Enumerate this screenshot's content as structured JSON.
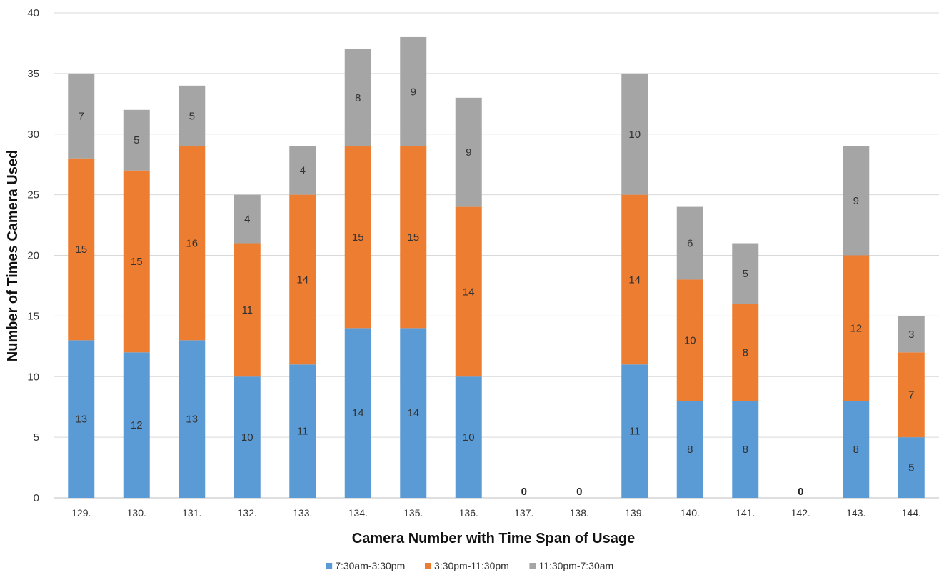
{
  "chart_data": {
    "type": "bar",
    "stacked": true,
    "title": "",
    "xlabel": "Camera Number with Time Span of Usage",
    "ylabel": "Number of Times Camera Used",
    "ylim": [
      0,
      40
    ],
    "yticks": [
      "0",
      "5",
      "10",
      "15",
      "20",
      "25",
      "30",
      "35",
      "40"
    ],
    "grid": "horizontal",
    "legend_position": "bottom",
    "categories": [
      "129.",
      "130.",
      "131.",
      "132.",
      "133.",
      "134.",
      "135.",
      "136.",
      "137.",
      "138.",
      "139.",
      "140.",
      "141.",
      "142.",
      "143.",
      "144."
    ],
    "series": [
      {
        "name": "7:30am-3:30pm",
        "color": "#5b9bd5",
        "values": [
          13,
          12,
          13,
          10,
          11,
          14,
          14,
          10,
          0,
          0,
          11,
          8,
          8,
          0,
          8,
          5
        ]
      },
      {
        "name": "3:30pm-11:30pm",
        "color": "#ed7d31",
        "values": [
          15,
          15,
          16,
          11,
          14,
          15,
          15,
          14,
          0,
          0,
          14,
          10,
          8,
          0,
          12,
          7
        ]
      },
      {
        "name": "11:30pm-7:30am",
        "color": "#a5a5a5",
        "values": [
          7,
          5,
          5,
          4,
          4,
          8,
          9,
          9,
          0,
          0,
          10,
          6,
          5,
          0,
          9,
          3
        ]
      }
    ],
    "total_labels": [
      "",
      "",
      "",
      "",
      "",
      "",
      "",
      "",
      "0",
      "0",
      "",
      "",
      "",
      "0",
      "",
      ""
    ]
  }
}
